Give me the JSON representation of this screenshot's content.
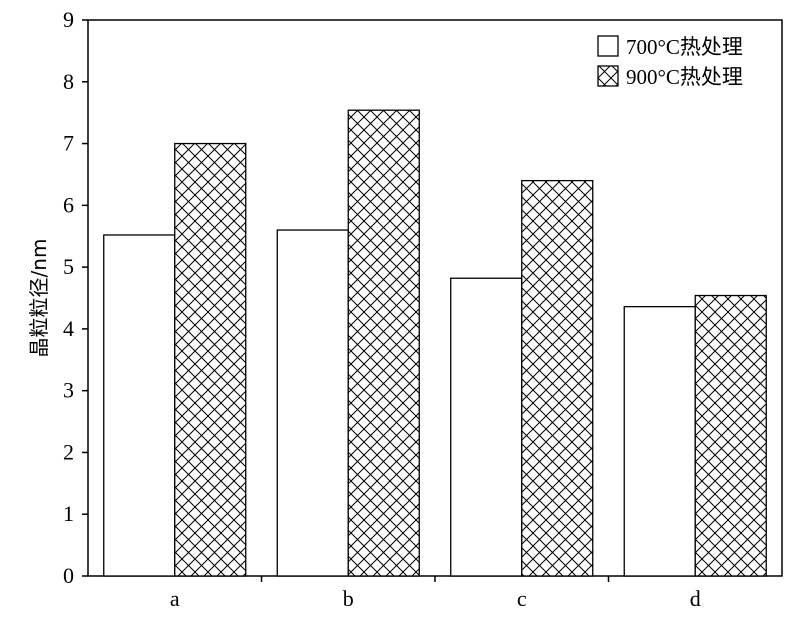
{
  "chart_data": {
    "type": "bar",
    "categories": [
      "a",
      "b",
      "c",
      "d"
    ],
    "series": [
      {
        "name": "700°C热处理",
        "pattern": "plain",
        "fill": "#ffffff",
        "values": [
          5.52,
          5.6,
          4.82,
          4.36
        ]
      },
      {
        "name": "900°C热处理",
        "pattern": "crosshatch",
        "fill": "#ffffff",
        "values": [
          7.0,
          7.54,
          6.4,
          4.54
        ]
      }
    ],
    "title": "",
    "xlabel": "",
    "ylabel": "晶粒粒径/nm",
    "ylim": [
      0,
      9
    ],
    "yticks": [
      "0",
      "1",
      "2",
      "3",
      "4",
      "5",
      "6",
      "7",
      "8",
      "9"
    ],
    "grid": false,
    "legend_position": "top-right",
    "colors": {
      "stroke": "#000000",
      "background": "#ffffff"
    }
  }
}
